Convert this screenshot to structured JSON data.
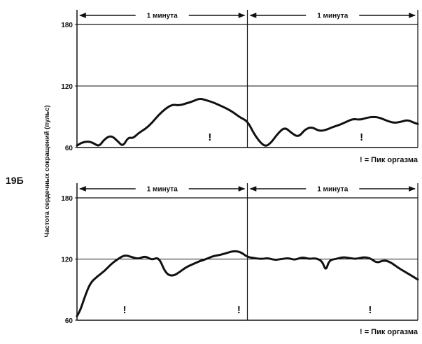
{
  "figure_label": "19Б",
  "y_axis_label": "Частота сердечных сокращений (пульс)",
  "chart_data": [
    {
      "type": "line",
      "segment_labels": [
        "1 минута",
        "1 минута"
      ],
      "legend_note": "! = Пик оргазма",
      "yticks": [
        60,
        120,
        180
      ],
      "ylim": [
        60,
        180
      ],
      "xlim": [
        0,
        2
      ],
      "grid": "horizontal line at 120, vertical divider at 1 minute",
      "series": [
        {
          "x": [
            0,
            0.03,
            0.07,
            0.1,
            0.13,
            0.16,
            0.2,
            0.24,
            0.27,
            0.3,
            0.33,
            0.36,
            0.4,
            0.44,
            0.48,
            0.52,
            0.56,
            0.6,
            0.64,
            0.68,
            0.72,
            0.76,
            0.8,
            0.84,
            0.88,
            0.92,
            0.96,
            1.0,
            1.04,
            1.08,
            1.11,
            1.14,
            1.18,
            1.22,
            1.26,
            1.3,
            1.34,
            1.38,
            1.42,
            1.46,
            1.5,
            1.54,
            1.58,
            1.62,
            1.66,
            1.7,
            1.74,
            1.78,
            1.82,
            1.86,
            1.9,
            1.94,
            1.98,
            2.0
          ],
          "values": [
            62,
            65,
            66,
            64,
            61,
            68,
            72,
            66,
            61,
            70,
            69,
            74,
            78,
            84,
            92,
            98,
            102,
            101,
            103,
            105,
            108,
            106,
            104,
            101,
            98,
            94,
            89,
            86,
            73,
            64,
            61,
            65,
            74,
            80,
            74,
            70,
            78,
            80,
            76,
            77,
            80,
            82,
            85,
            88,
            87,
            89,
            90,
            89,
            86,
            84,
            85,
            87,
            84,
            83
          ]
        }
      ],
      "orgasm_peaks_x": [
        0.78,
        1.67
      ]
    },
    {
      "type": "line",
      "segment_labels": [
        "1 минута",
        "1 минута"
      ],
      "legend_note": "! = Пик оргазма",
      "yticks": [
        60,
        120,
        180
      ],
      "ylim": [
        60,
        180
      ],
      "xlim": [
        0,
        2
      ],
      "grid": "horizontal line at 120, vertical divider at 1 minute",
      "series": [
        {
          "x": [
            0,
            0.02,
            0.05,
            0.08,
            0.12,
            0.16,
            0.2,
            0.24,
            0.28,
            0.32,
            0.36,
            0.4,
            0.44,
            0.48,
            0.52,
            0.56,
            0.6,
            0.64,
            0.68,
            0.72,
            0.76,
            0.8,
            0.84,
            0.88,
            0.92,
            0.96,
            1.0,
            1.04,
            1.08,
            1.12,
            1.16,
            1.2,
            1.24,
            1.28,
            1.32,
            1.36,
            1.4,
            1.44,
            1.46,
            1.48,
            1.52,
            1.56,
            1.6,
            1.64,
            1.68,
            1.72,
            1.76,
            1.8,
            1.84,
            1.88,
            1.92,
            1.96,
            2.0
          ],
          "values": [
            64,
            70,
            85,
            97,
            103,
            108,
            115,
            120,
            124,
            122,
            120,
            123,
            119,
            122,
            106,
            103,
            107,
            112,
            115,
            118,
            120,
            123,
            124,
            126,
            128,
            127,
            122,
            121,
            120,
            121,
            119,
            120,
            121,
            119,
            122,
            120,
            121,
            118,
            108,
            119,
            120,
            122,
            121,
            120,
            122,
            121,
            116,
            119,
            117,
            112,
            108,
            104,
            100
          ]
        }
      ],
      "orgasm_peaks_x": [
        0.28,
        0.95,
        1.72
      ]
    }
  ]
}
